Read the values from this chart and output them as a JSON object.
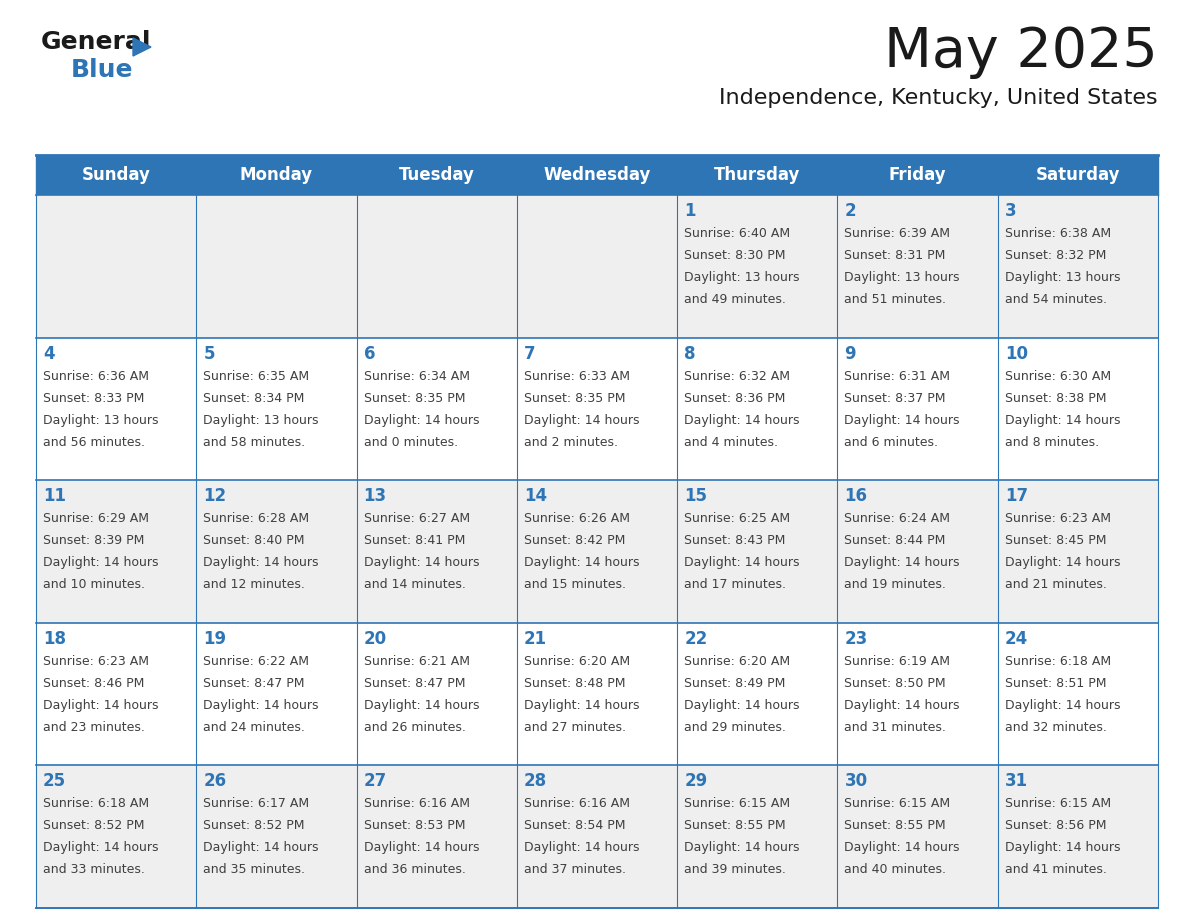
{
  "title": "May 2025",
  "subtitle": "Independence, Kentucky, United States",
  "header_bg": "#2E75B6",
  "header_text": "#FFFFFF",
  "day_names": [
    "Sunday",
    "Monday",
    "Tuesday",
    "Wednesday",
    "Thursday",
    "Friday",
    "Saturday"
  ],
  "row_bg_even": "#EFEFEF",
  "row_bg_odd": "#FFFFFF",
  "border_color": "#2E75B6",
  "text_color": "#404040",
  "date_color": "#2E75B6",
  "weeks": [
    [
      {
        "day": "",
        "info": ""
      },
      {
        "day": "",
        "info": ""
      },
      {
        "day": "",
        "info": ""
      },
      {
        "day": "",
        "info": ""
      },
      {
        "day": "1",
        "info": "Sunrise: 6:40 AM\nSunset: 8:30 PM\nDaylight: 13 hours\nand 49 minutes."
      },
      {
        "day": "2",
        "info": "Sunrise: 6:39 AM\nSunset: 8:31 PM\nDaylight: 13 hours\nand 51 minutes."
      },
      {
        "day": "3",
        "info": "Sunrise: 6:38 AM\nSunset: 8:32 PM\nDaylight: 13 hours\nand 54 minutes."
      }
    ],
    [
      {
        "day": "4",
        "info": "Sunrise: 6:36 AM\nSunset: 8:33 PM\nDaylight: 13 hours\nand 56 minutes."
      },
      {
        "day": "5",
        "info": "Sunrise: 6:35 AM\nSunset: 8:34 PM\nDaylight: 13 hours\nand 58 minutes."
      },
      {
        "day": "6",
        "info": "Sunrise: 6:34 AM\nSunset: 8:35 PM\nDaylight: 14 hours\nand 0 minutes."
      },
      {
        "day": "7",
        "info": "Sunrise: 6:33 AM\nSunset: 8:35 PM\nDaylight: 14 hours\nand 2 minutes."
      },
      {
        "day": "8",
        "info": "Sunrise: 6:32 AM\nSunset: 8:36 PM\nDaylight: 14 hours\nand 4 minutes."
      },
      {
        "day": "9",
        "info": "Sunrise: 6:31 AM\nSunset: 8:37 PM\nDaylight: 14 hours\nand 6 minutes."
      },
      {
        "day": "10",
        "info": "Sunrise: 6:30 AM\nSunset: 8:38 PM\nDaylight: 14 hours\nand 8 minutes."
      }
    ],
    [
      {
        "day": "11",
        "info": "Sunrise: 6:29 AM\nSunset: 8:39 PM\nDaylight: 14 hours\nand 10 minutes."
      },
      {
        "day": "12",
        "info": "Sunrise: 6:28 AM\nSunset: 8:40 PM\nDaylight: 14 hours\nand 12 minutes."
      },
      {
        "day": "13",
        "info": "Sunrise: 6:27 AM\nSunset: 8:41 PM\nDaylight: 14 hours\nand 14 minutes."
      },
      {
        "day": "14",
        "info": "Sunrise: 6:26 AM\nSunset: 8:42 PM\nDaylight: 14 hours\nand 15 minutes."
      },
      {
        "day": "15",
        "info": "Sunrise: 6:25 AM\nSunset: 8:43 PM\nDaylight: 14 hours\nand 17 minutes."
      },
      {
        "day": "16",
        "info": "Sunrise: 6:24 AM\nSunset: 8:44 PM\nDaylight: 14 hours\nand 19 minutes."
      },
      {
        "day": "17",
        "info": "Sunrise: 6:23 AM\nSunset: 8:45 PM\nDaylight: 14 hours\nand 21 minutes."
      }
    ],
    [
      {
        "day": "18",
        "info": "Sunrise: 6:23 AM\nSunset: 8:46 PM\nDaylight: 14 hours\nand 23 minutes."
      },
      {
        "day": "19",
        "info": "Sunrise: 6:22 AM\nSunset: 8:47 PM\nDaylight: 14 hours\nand 24 minutes."
      },
      {
        "day": "20",
        "info": "Sunrise: 6:21 AM\nSunset: 8:47 PM\nDaylight: 14 hours\nand 26 minutes."
      },
      {
        "day": "21",
        "info": "Sunrise: 6:20 AM\nSunset: 8:48 PM\nDaylight: 14 hours\nand 27 minutes."
      },
      {
        "day": "22",
        "info": "Sunrise: 6:20 AM\nSunset: 8:49 PM\nDaylight: 14 hours\nand 29 minutes."
      },
      {
        "day": "23",
        "info": "Sunrise: 6:19 AM\nSunset: 8:50 PM\nDaylight: 14 hours\nand 31 minutes."
      },
      {
        "day": "24",
        "info": "Sunrise: 6:18 AM\nSunset: 8:51 PM\nDaylight: 14 hours\nand 32 minutes."
      }
    ],
    [
      {
        "day": "25",
        "info": "Sunrise: 6:18 AM\nSunset: 8:52 PM\nDaylight: 14 hours\nand 33 minutes."
      },
      {
        "day": "26",
        "info": "Sunrise: 6:17 AM\nSunset: 8:52 PM\nDaylight: 14 hours\nand 35 minutes."
      },
      {
        "day": "27",
        "info": "Sunrise: 6:16 AM\nSunset: 8:53 PM\nDaylight: 14 hours\nand 36 minutes."
      },
      {
        "day": "28",
        "info": "Sunrise: 6:16 AM\nSunset: 8:54 PM\nDaylight: 14 hours\nand 37 minutes."
      },
      {
        "day": "29",
        "info": "Sunrise: 6:15 AM\nSunset: 8:55 PM\nDaylight: 14 hours\nand 39 minutes."
      },
      {
        "day": "30",
        "info": "Sunrise: 6:15 AM\nSunset: 8:55 PM\nDaylight: 14 hours\nand 40 minutes."
      },
      {
        "day": "31",
        "info": "Sunrise: 6:15 AM\nSunset: 8:56 PM\nDaylight: 14 hours\nand 41 minutes."
      }
    ]
  ]
}
